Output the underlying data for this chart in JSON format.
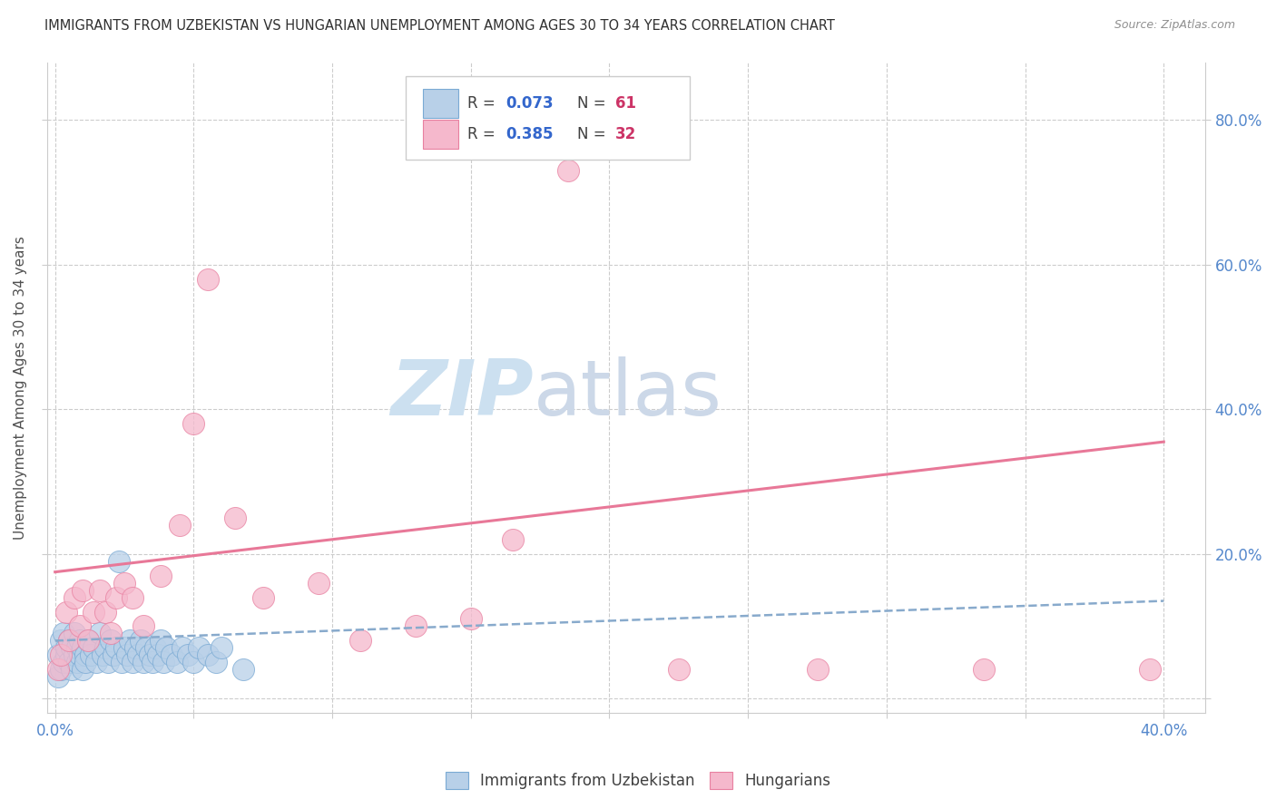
{
  "title": "IMMIGRANTS FROM UZBEKISTAN VS HUNGARIAN UNEMPLOYMENT AMONG AGES 30 TO 34 YEARS CORRELATION CHART",
  "source": "Source: ZipAtlas.com",
  "ylabel": "Unemployment Among Ages 30 to 34 years",
  "xlim": [
    -0.003,
    0.415
  ],
  "ylim": [
    -0.02,
    0.88
  ],
  "xticks": [
    0.0,
    0.05,
    0.1,
    0.15,
    0.2,
    0.25,
    0.3,
    0.35,
    0.4
  ],
  "xticklabels": [
    "0.0%",
    "",
    "",
    "",
    "",
    "",
    "",
    "",
    "40.0%"
  ],
  "yticks": [
    0.0,
    0.2,
    0.4,
    0.6,
    0.8
  ],
  "yticklabels_right": [
    "",
    "20.0%",
    "40.0%",
    "60.0%",
    "80.0%"
  ],
  "color_blue_fill": "#b8d0e8",
  "color_blue_edge": "#7aaad4",
  "color_pink_fill": "#f5b8cc",
  "color_pink_edge": "#e880a0",
  "color_blue_trend": "#88aacc",
  "color_pink_trend": "#e87898",
  "color_grid": "#cccccc",
  "color_tick_label": "#5588cc",
  "color_title": "#303030",
  "color_source": "#909090",
  "color_r_text": "#404040",
  "color_r_value": "#3366cc",
  "color_n_value": "#cc3366",
  "watermark_color": "#cce0f0",
  "legend_label1": "Immigrants from Uzbekistan",
  "legend_label2": "Hungarians",
  "blue_x": [
    0.001,
    0.001,
    0.002,
    0.002,
    0.003,
    0.003,
    0.004,
    0.004,
    0.005,
    0.005,
    0.006,
    0.006,
    0.007,
    0.007,
    0.008,
    0.008,
    0.009,
    0.009,
    0.01,
    0.01,
    0.011,
    0.011,
    0.012,
    0.013,
    0.014,
    0.015,
    0.016,
    0.017,
    0.018,
    0.019,
    0.02,
    0.021,
    0.022,
    0.023,
    0.024,
    0.025,
    0.026,
    0.027,
    0.028,
    0.029,
    0.03,
    0.031,
    0.032,
    0.033,
    0.034,
    0.035,
    0.036,
    0.037,
    0.038,
    0.039,
    0.04,
    0.042,
    0.044,
    0.046,
    0.048,
    0.05,
    0.052,
    0.055,
    0.058,
    0.06,
    0.068
  ],
  "blue_y": [
    0.03,
    0.06,
    0.04,
    0.08,
    0.05,
    0.09,
    0.06,
    0.07,
    0.05,
    0.08,
    0.07,
    0.04,
    0.06,
    0.09,
    0.05,
    0.07,
    0.06,
    0.08,
    0.04,
    0.07,
    0.06,
    0.05,
    0.08,
    0.06,
    0.07,
    0.05,
    0.09,
    0.06,
    0.07,
    0.05,
    0.08,
    0.06,
    0.07,
    0.19,
    0.05,
    0.07,
    0.06,
    0.08,
    0.05,
    0.07,
    0.06,
    0.08,
    0.05,
    0.07,
    0.06,
    0.05,
    0.07,
    0.06,
    0.08,
    0.05,
    0.07,
    0.06,
    0.05,
    0.07,
    0.06,
    0.05,
    0.07,
    0.06,
    0.05,
    0.07,
    0.04
  ],
  "pink_x": [
    0.001,
    0.002,
    0.004,
    0.005,
    0.007,
    0.009,
    0.01,
    0.012,
    0.014,
    0.016,
    0.018,
    0.02,
    0.022,
    0.025,
    0.028,
    0.032,
    0.038,
    0.045,
    0.05,
    0.055,
    0.065,
    0.075,
    0.095,
    0.11,
    0.13,
    0.15,
    0.165,
    0.185,
    0.225,
    0.275,
    0.335,
    0.395
  ],
  "pink_y": [
    0.04,
    0.06,
    0.12,
    0.08,
    0.14,
    0.1,
    0.15,
    0.08,
    0.12,
    0.15,
    0.12,
    0.09,
    0.14,
    0.16,
    0.14,
    0.1,
    0.17,
    0.24,
    0.38,
    0.58,
    0.25,
    0.14,
    0.16,
    0.08,
    0.1,
    0.11,
    0.22,
    0.73,
    0.04,
    0.04,
    0.04,
    0.04
  ],
  "blue_trend_x": [
    0.0,
    0.4
  ],
  "blue_trend_y": [
    0.08,
    0.135
  ],
  "pink_trend_x": [
    0.0,
    0.4
  ],
  "pink_trend_y": [
    0.175,
    0.355
  ]
}
